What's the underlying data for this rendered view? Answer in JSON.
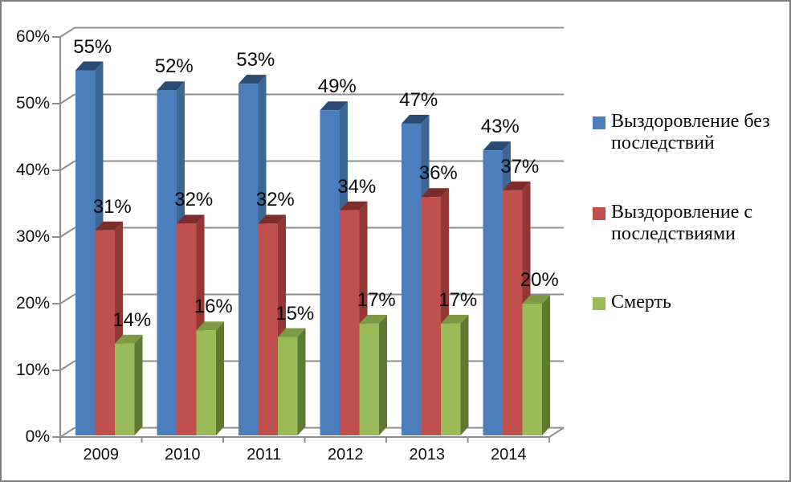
{
  "frame": {
    "background": "#ffffff",
    "border_color": "#7f7f7f"
  },
  "chart_data": {
    "type": "bar",
    "subtype": "3d-clustered-column",
    "title": "",
    "categories": [
      "2009",
      "2010",
      "2011",
      "2012",
      "2013",
      "2014"
    ],
    "series": [
      {
        "name": "Выздоровление без последствий",
        "values": [
          55,
          52,
          53,
          49,
          47,
          43
        ],
        "data_labels": [
          "55%",
          "52%",
          "53%",
          "49%",
          "47%",
          "43%"
        ],
        "color": "#4C7EBD",
        "color_top": "#2C4B72",
        "color_side": "#3C6694"
      },
      {
        "name": "Выздоровление с последствиями",
        "values": [
          31,
          32,
          32,
          34,
          36,
          37
        ],
        "data_labels": [
          "31%",
          "32%",
          "32%",
          "34%",
          "36%",
          "37%"
        ],
        "color": "#C0504D",
        "color_top": "#7B2D2B",
        "color_side": "#943634"
      },
      {
        "name": "Смерть",
        "values": [
          14,
          16,
          15,
          17,
          17,
          20
        ],
        "data_labels": [
          "14%",
          "16%",
          "15%",
          "17%",
          "17%",
          "20%"
        ],
        "color": "#9BBB59",
        "color_top": "#7D9B44",
        "color_side": "#5E7932"
      }
    ],
    "value_axis": {
      "min": 0,
      "max": 60,
      "step": 10,
      "tick_labels": [
        "0%",
        "10%",
        "20%",
        "30%",
        "40%",
        "50%",
        "60%"
      ]
    },
    "category_axis": {
      "tick_labels": [
        "2009",
        "2010",
        "2011",
        "2012",
        "2013",
        "2014"
      ]
    },
    "legend_position": "right",
    "grid": true,
    "gridline_color": "#8E8E8E",
    "axis_color": "#8A8A8A",
    "text_color": "#111111"
  }
}
